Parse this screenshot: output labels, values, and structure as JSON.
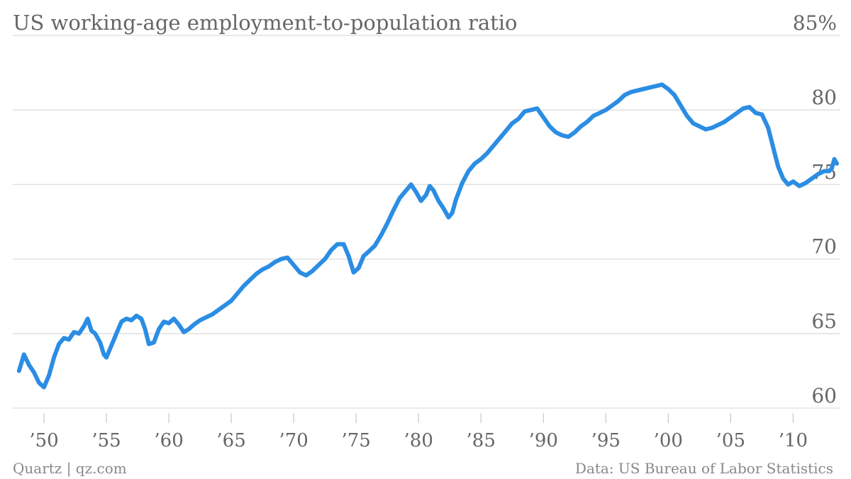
{
  "chart_data": {
    "type": "line",
    "title": "US working-age employment-to-population ratio",
    "x_range": [
      1947.5,
      2013.5
    ],
    "ylim": [
      60,
      85
    ],
    "grid": true,
    "y_ticks": [
      {
        "value": 60,
        "label": "60"
      },
      {
        "value": 65,
        "label": "65"
      },
      {
        "value": 70,
        "label": "70"
      },
      {
        "value": 75,
        "label": "75"
      },
      {
        "value": 80,
        "label": "80"
      },
      {
        "value": 85,
        "label": "85%"
      }
    ],
    "x_ticks": [
      {
        "value": 1950,
        "label": "’50"
      },
      {
        "value": 1955,
        "label": "’55"
      },
      {
        "value": 1960,
        "label": "’60"
      },
      {
        "value": 1965,
        "label": "’65"
      },
      {
        "value": 1970,
        "label": "’70"
      },
      {
        "value": 1975,
        "label": "’75"
      },
      {
        "value": 1980,
        "label": "’80"
      },
      {
        "value": 1985,
        "label": "’85"
      },
      {
        "value": 1990,
        "label": "’90"
      },
      {
        "value": 1995,
        "label": "’95"
      },
      {
        "value": 2000,
        "label": "’00"
      },
      {
        "value": 2005,
        "label": "’05"
      },
      {
        "value": 2010,
        "label": "’10"
      }
    ],
    "series": [
      {
        "color": "#2b8de3",
        "points": [
          [
            1948.0,
            62.5
          ],
          [
            1948.4,
            63.6
          ],
          [
            1948.8,
            62.9
          ],
          [
            1949.2,
            62.4
          ],
          [
            1949.6,
            61.7
          ],
          [
            1950.0,
            61.4
          ],
          [
            1950.4,
            62.2
          ],
          [
            1950.8,
            63.4
          ],
          [
            1951.2,
            64.3
          ],
          [
            1951.6,
            64.7
          ],
          [
            1952.0,
            64.6
          ],
          [
            1952.4,
            65.1
          ],
          [
            1952.8,
            65.0
          ],
          [
            1953.2,
            65.5
          ],
          [
            1953.5,
            66.0
          ],
          [
            1953.8,
            65.2
          ],
          [
            1954.1,
            65.0
          ],
          [
            1954.5,
            64.4
          ],
          [
            1954.8,
            63.6
          ],
          [
            1955.0,
            63.4
          ],
          [
            1955.4,
            64.2
          ],
          [
            1955.8,
            65.0
          ],
          [
            1956.2,
            65.8
          ],
          [
            1956.6,
            66.0
          ],
          [
            1957.0,
            65.9
          ],
          [
            1957.4,
            66.2
          ],
          [
            1957.8,
            66.0
          ],
          [
            1958.1,
            65.3
          ],
          [
            1958.4,
            64.3
          ],
          [
            1958.8,
            64.4
          ],
          [
            1959.2,
            65.3
          ],
          [
            1959.6,
            65.8
          ],
          [
            1960.0,
            65.7
          ],
          [
            1960.4,
            66.0
          ],
          [
            1960.8,
            65.6
          ],
          [
            1961.2,
            65.1
          ],
          [
            1961.6,
            65.3
          ],
          [
            1962.0,
            65.6
          ],
          [
            1962.5,
            65.9
          ],
          [
            1963.0,
            66.1
          ],
          [
            1963.5,
            66.3
          ],
          [
            1964.0,
            66.6
          ],
          [
            1964.5,
            66.9
          ],
          [
            1965.0,
            67.2
          ],
          [
            1965.5,
            67.7
          ],
          [
            1966.0,
            68.2
          ],
          [
            1966.5,
            68.6
          ],
          [
            1967.0,
            69.0
          ],
          [
            1967.5,
            69.3
          ],
          [
            1968.0,
            69.5
          ],
          [
            1968.5,
            69.8
          ],
          [
            1969.0,
            70.0
          ],
          [
            1969.5,
            70.1
          ],
          [
            1970.0,
            69.6
          ],
          [
            1970.5,
            69.1
          ],
          [
            1971.0,
            68.9
          ],
          [
            1971.5,
            69.2
          ],
          [
            1972.0,
            69.6
          ],
          [
            1972.5,
            70.0
          ],
          [
            1973.0,
            70.6
          ],
          [
            1973.5,
            71.0
          ],
          [
            1974.0,
            71.0
          ],
          [
            1974.4,
            70.2
          ],
          [
            1974.8,
            69.1
          ],
          [
            1975.2,
            69.4
          ],
          [
            1975.6,
            70.2
          ],
          [
            1976.0,
            70.5
          ],
          [
            1976.5,
            70.9
          ],
          [
            1977.0,
            71.6
          ],
          [
            1977.5,
            72.4
          ],
          [
            1978.0,
            73.3
          ],
          [
            1978.5,
            74.1
          ],
          [
            1979.0,
            74.6
          ],
          [
            1979.4,
            75.0
          ],
          [
            1979.8,
            74.5
          ],
          [
            1980.2,
            73.9
          ],
          [
            1980.6,
            74.3
          ],
          [
            1980.9,
            74.9
          ],
          [
            1981.2,
            74.6
          ],
          [
            1981.6,
            73.9
          ],
          [
            1982.0,
            73.4
          ],
          [
            1982.4,
            72.8
          ],
          [
            1982.7,
            73.1
          ],
          [
            1983.0,
            74.0
          ],
          [
            1983.5,
            75.1
          ],
          [
            1984.0,
            75.9
          ],
          [
            1984.5,
            76.4
          ],
          [
            1985.0,
            76.7
          ],
          [
            1985.5,
            77.1
          ],
          [
            1986.0,
            77.6
          ],
          [
            1986.5,
            78.1
          ],
          [
            1987.0,
            78.6
          ],
          [
            1987.5,
            79.1
          ],
          [
            1988.0,
            79.4
          ],
          [
            1988.5,
            79.9
          ],
          [
            1989.0,
            80.0
          ],
          [
            1989.5,
            80.1
          ],
          [
            1990.0,
            79.5
          ],
          [
            1990.5,
            78.9
          ],
          [
            1991.0,
            78.5
          ],
          [
            1991.5,
            78.3
          ],
          [
            1992.0,
            78.2
          ],
          [
            1992.5,
            78.5
          ],
          [
            1993.0,
            78.9
          ],
          [
            1993.5,
            79.2
          ],
          [
            1994.0,
            79.6
          ],
          [
            1994.5,
            79.8
          ],
          [
            1995.0,
            80.0
          ],
          [
            1995.5,
            80.3
          ],
          [
            1996.0,
            80.6
          ],
          [
            1996.5,
            81.0
          ],
          [
            1997.0,
            81.2
          ],
          [
            1997.5,
            81.3
          ],
          [
            1998.0,
            81.4
          ],
          [
            1998.5,
            81.5
          ],
          [
            1999.0,
            81.6
          ],
          [
            1999.5,
            81.7
          ],
          [
            2000.0,
            81.4
          ],
          [
            2000.5,
            81.0
          ],
          [
            2001.0,
            80.3
          ],
          [
            2001.5,
            79.6
          ],
          [
            2002.0,
            79.1
          ],
          [
            2002.5,
            78.9
          ],
          [
            2003.0,
            78.7
          ],
          [
            2003.5,
            78.8
          ],
          [
            2004.0,
            79.0
          ],
          [
            2004.5,
            79.2
          ],
          [
            2005.0,
            79.5
          ],
          [
            2005.5,
            79.8
          ],
          [
            2006.0,
            80.1
          ],
          [
            2006.5,
            80.2
          ],
          [
            2007.0,
            79.8
          ],
          [
            2007.5,
            79.7
          ],
          [
            2008.0,
            78.8
          ],
          [
            2008.4,
            77.5
          ],
          [
            2008.8,
            76.2
          ],
          [
            2009.2,
            75.4
          ],
          [
            2009.6,
            75.0
          ],
          [
            2010.0,
            75.2
          ],
          [
            2010.5,
            74.9
          ],
          [
            2011.0,
            75.1
          ],
          [
            2011.5,
            75.4
          ],
          [
            2012.0,
            75.7
          ],
          [
            2012.5,
            75.9
          ],
          [
            2012.9,
            75.9
          ],
          [
            2013.1,
            76.1
          ],
          [
            2013.3,
            76.7
          ],
          [
            2013.5,
            76.4
          ]
        ]
      }
    ]
  },
  "footer": {
    "source_left": "Quartz | qz.com",
    "source_right": "Data: US Bureau of Labor Statistics"
  }
}
